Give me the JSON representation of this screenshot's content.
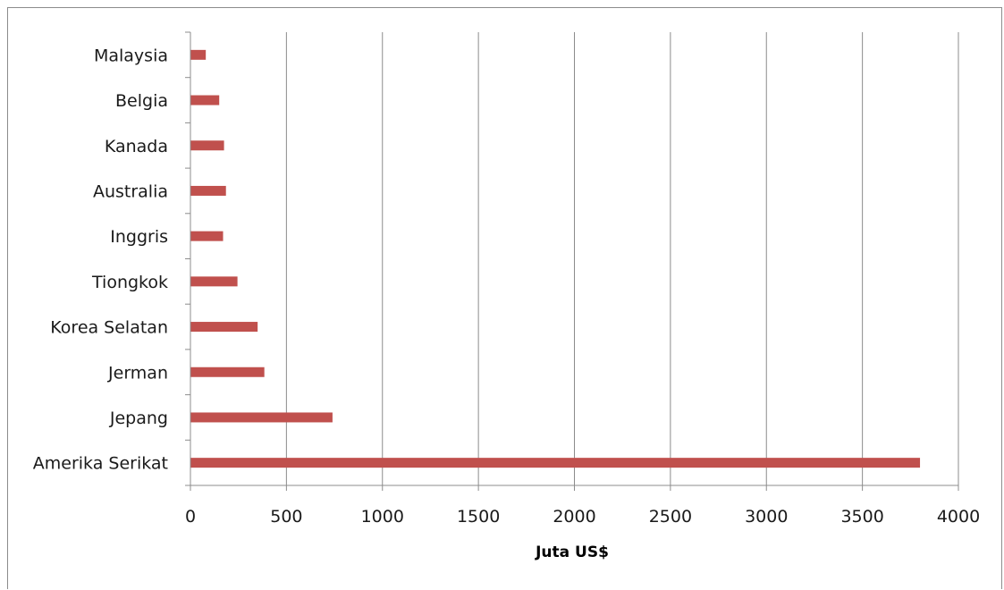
{
  "chart_data": {
    "type": "bar",
    "orientation": "horizontal",
    "categories": [
      "Malaysia",
      "Belgia",
      "Kanada",
      "Australia",
      "Inggris",
      "Tiongkok",
      "Korea Selatan",
      "Jerman",
      "Jepang",
      "Amerika Serikat"
    ],
    "values": [
      80,
      150,
      175,
      185,
      170,
      245,
      350,
      385,
      740,
      3800
    ],
    "xlabel": "Juta US$",
    "ylabel": "",
    "title": "",
    "xlim": [
      0,
      4000
    ],
    "xticks": [
      0,
      500,
      1000,
      1500,
      2000,
      2500,
      3000,
      3500,
      4000
    ],
    "grid": "vertical",
    "legend": "none",
    "bar_color": "#c0504d",
    "grid_color": "#8c8c8c"
  }
}
